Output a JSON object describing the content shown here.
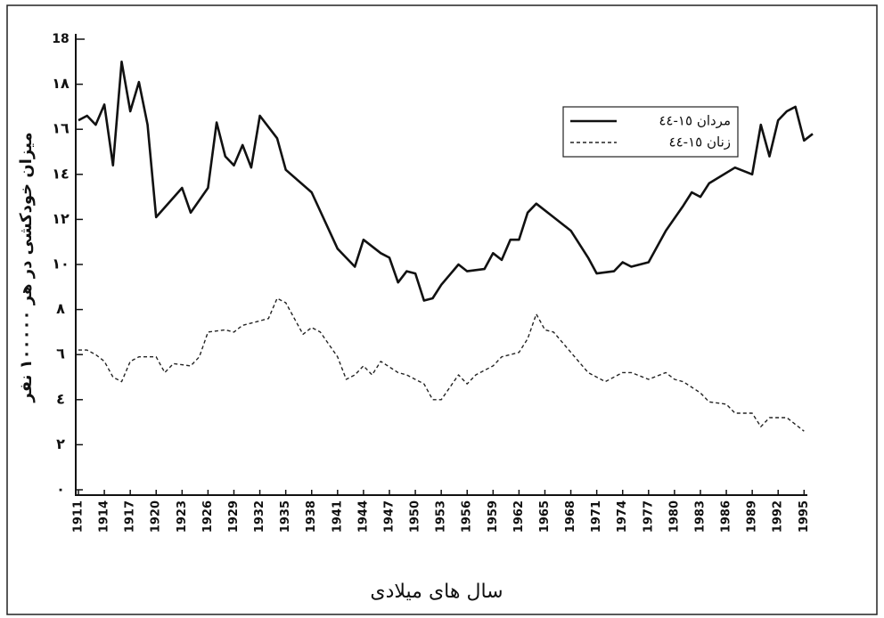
{
  "chart_data": {
    "type": "line",
    "y_label": "میزان خودکشی در هر ١٠٠٠٠٠ نفر",
    "x_label": "سال های میلادی",
    "xlim": [
      1911,
      1996
    ],
    "xticks": [
      1911,
      1914,
      1917,
      1920,
      1923,
      1926,
      1929,
      1932,
      1935,
      1938,
      1941,
      1944,
      1947,
      1950,
      1953,
      1956,
      1959,
      1962,
      1965,
      1968,
      1971,
      1974,
      1977,
      1980,
      1983,
      1986,
      1989,
      1992,
      1995
    ],
    "ylim": [
      0,
      20
    ],
    "y_top_tick_label": "18",
    "yticks": [
      {
        "value": 0,
        "label": "٠"
      },
      {
        "value": 2,
        "label": "٢"
      },
      {
        "value": 4,
        "label": "٤"
      },
      {
        "value": 6,
        "label": "٦"
      },
      {
        "value": 8,
        "label": "٨"
      },
      {
        "value": 10,
        "label": "١٠"
      },
      {
        "value": 12,
        "label": "١٢"
      },
      {
        "value": 14,
        "label": "١٤"
      },
      {
        "value": 16,
        "label": "١٦"
      },
      {
        "value": 18,
        "label": "١٨"
      }
    ],
    "legend": "upper-right",
    "series": [
      {
        "name": "مردان ١٥-٤٤",
        "color": "#111111",
        "line_style": "solid",
        "x": [
          1911,
          1912,
          1913,
          1914,
          1915,
          1916,
          1917,
          1918,
          1919,
          1920,
          1923,
          1924,
          1926,
          1927,
          1928,
          1929,
          1930,
          1931,
          1932,
          1934,
          1935,
          1938,
          1941,
          1943,
          1944,
          1946,
          1947,
          1948,
          1949,
          1950,
          1951,
          1952,
          1953,
          1955,
          1956,
          1958,
          1959,
          1960,
          1961,
          1962,
          1963,
          1964,
          1966,
          1968,
          1970,
          1971,
          1973,
          1974,
          1975,
          1977,
          1979,
          1981,
          1982,
          1983,
          1984,
          1987,
          1989,
          1990,
          1991,
          1992,
          1993,
          1994,
          1995,
          1996
        ],
        "values": [
          16.4,
          16.6,
          16.2,
          17.1,
          14.4,
          19.0,
          16.8,
          18.1,
          16.2,
          12.1,
          13.4,
          12.3,
          13.4,
          16.3,
          14.8,
          14.4,
          15.3,
          14.3,
          16.6,
          15.6,
          14.2,
          13.2,
          10.7,
          9.9,
          11.1,
          10.5,
          10.3,
          9.2,
          9.7,
          9.6,
          8.4,
          8.5,
          9.1,
          10.0,
          9.7,
          9.8,
          10.5,
          10.2,
          11.1,
          11.1,
          12.3,
          12.7,
          12.1,
          11.5,
          10.3,
          9.6,
          9.7,
          10.1,
          9.9,
          10.1,
          11.5,
          12.6,
          13.2,
          13.0,
          13.6,
          14.3,
          14.0,
          16.2,
          14.8,
          16.4,
          16.8,
          17.0,
          15.5,
          15.8
        ]
      },
      {
        "name": "زنان ١٥-٤٤",
        "color": "#222222",
        "line_style": "dashed",
        "x": [
          1911,
          1912,
          1913,
          1914,
          1915,
          1916,
          1917,
          1918,
          1920,
          1921,
          1922,
          1924,
          1925,
          1926,
          1928,
          1929,
          1930,
          1932,
          1933,
          1934,
          1935,
          1937,
          1938,
          1939,
          1941,
          1942,
          1943,
          1944,
          1945,
          1946,
          1948,
          1949,
          1951,
          1952,
          1953,
          1955,
          1956,
          1957,
          1959,
          1960,
          1962,
          1963,
          1964,
          1965,
          1966,
          1968,
          1970,
          1972,
          1974,
          1975,
          1977,
          1979,
          1980,
          1981,
          1983,
          1984,
          1986,
          1987,
          1989,
          1990,
          1991,
          1993,
          1994,
          1995
        ],
        "values": [
          6.2,
          6.2,
          6.0,
          5.7,
          5.0,
          4.8,
          5.7,
          5.9,
          5.9,
          5.2,
          5.6,
          5.5,
          5.9,
          7.0,
          7.1,
          7.0,
          7.3,
          7.5,
          7.6,
          8.5,
          8.3,
          6.9,
          7.2,
          7.0,
          5.9,
          4.9,
          5.1,
          5.5,
          5.1,
          5.7,
          5.2,
          5.1,
          4.7,
          4.0,
          4.0,
          5.1,
          4.7,
          5.1,
          5.5,
          5.9,
          6.1,
          6.7,
          7.8,
          7.1,
          7.0,
          6.1,
          5.2,
          4.8,
          5.2,
          5.2,
          4.9,
          5.2,
          4.9,
          4.8,
          4.3,
          3.9,
          3.8,
          3.4,
          3.4,
          2.8,
          3.2,
          3.2,
          2.9,
          2.6
        ]
      }
    ]
  }
}
